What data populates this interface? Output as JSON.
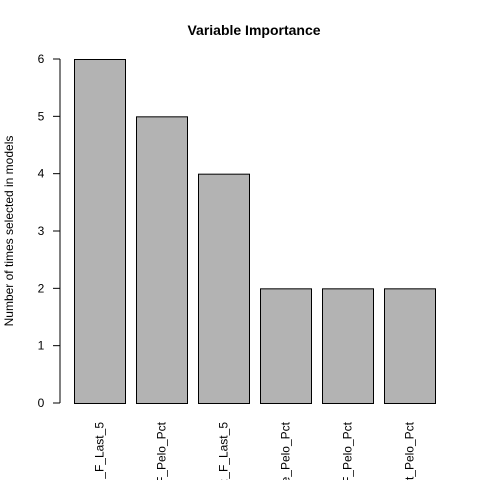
{
  "chart_data": {
    "type": "bar",
    "title": "Variable Importance",
    "xlabel": "",
    "ylabel": "Number of times selected in models",
    "ylim": [
      0,
      6
    ],
    "yticks": [
      0,
      1,
      2,
      3,
      4,
      5,
      6
    ],
    "categories": [
      "_F_Last_5",
      "F_Pelo_Pct",
      ":_F_Last_5",
      "e_Pelo_Pct",
      "F_Pelo_Pct",
      "t_Pelo_Pct"
    ],
    "values": [
      6,
      5,
      4,
      2,
      2,
      2
    ],
    "bar_color": "#b3b3b3",
    "bar_edge_color": "#000000",
    "grid": false
  }
}
